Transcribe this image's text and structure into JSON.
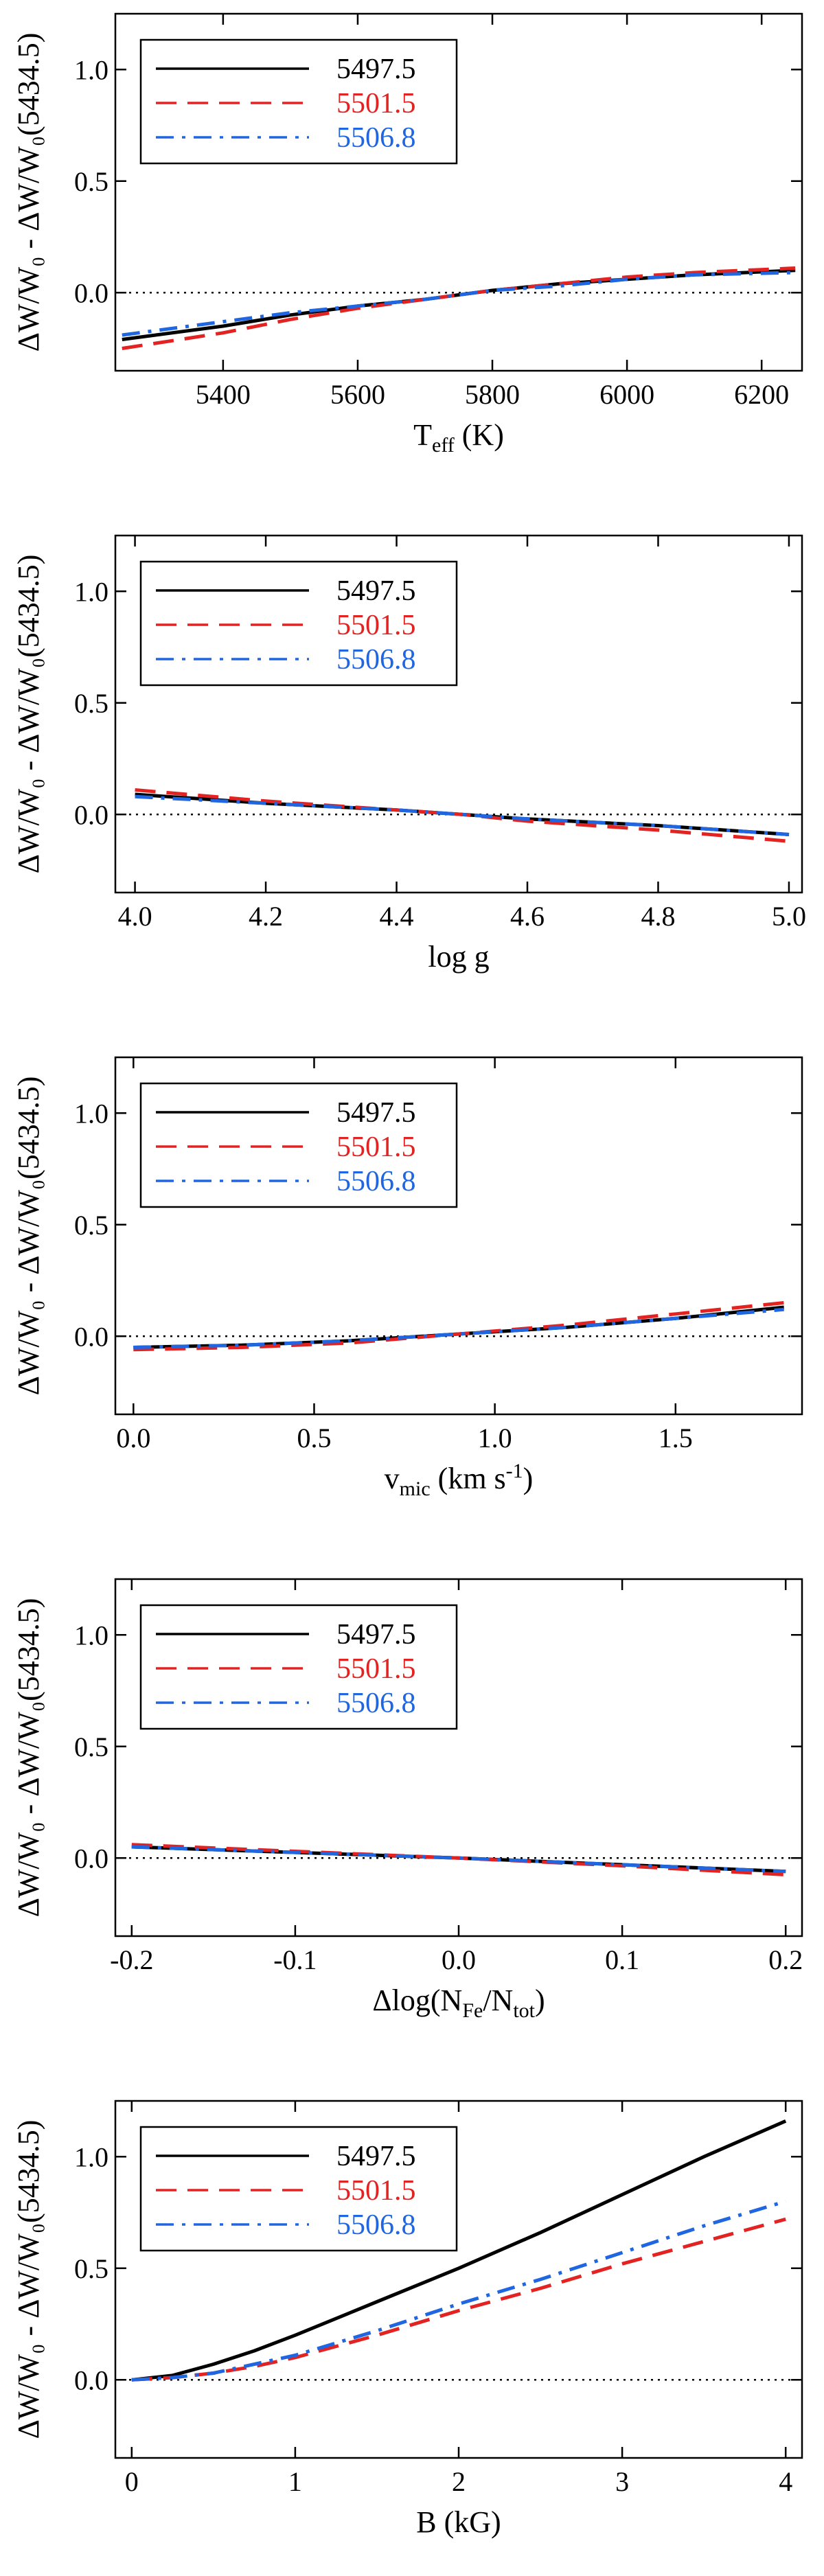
{
  "figure_title": "",
  "chart_data": [
    {
      "type": "line",
      "title": "",
      "xlabel": "T",
      "xlabel_sub": "eff",
      "xlabel_unit": " (K)",
      "ylabel": "ΔW/W₀ - ΔW/W₀(5434.5)",
      "xlim": [
        5240,
        6260
      ],
      "ylim": [
        -0.35,
        1.25
      ],
      "xticks": [
        5400,
        5600,
        5800,
        6000,
        6200
      ],
      "xtick_labels": [
        "5400",
        "5600",
        "5800",
        "6000",
        "6200"
      ],
      "yticks": [
        0.0,
        0.5,
        1.0
      ],
      "ytick_labels": [
        "0.0",
        "0.5",
        "1.0"
      ],
      "reference_line": 0,
      "legend_position": "top-left",
      "series": [
        {
          "name": "5497.5",
          "color": "#000000",
          "dash": "solid",
          "x": [
            5250,
            5400,
            5500,
            5600,
            5700,
            5800,
            5900,
            6000,
            6100,
            6250
          ],
          "y": [
            -0.21,
            -0.15,
            -0.1,
            -0.06,
            -0.03,
            0.01,
            0.04,
            0.06,
            0.08,
            0.1
          ]
        },
        {
          "name": "5501.5",
          "color": "#e32222",
          "dash": "dashed",
          "x": [
            5250,
            5400,
            5500,
            5600,
            5700,
            5800,
            5900,
            6000,
            6100,
            6250
          ],
          "y": [
            -0.25,
            -0.18,
            -0.12,
            -0.07,
            -0.03,
            0.01,
            0.04,
            0.07,
            0.09,
            0.11
          ]
        },
        {
          "name": "5506.8",
          "color": "#1f66e0",
          "dash": "dashdot",
          "x": [
            5250,
            5400,
            5500,
            5600,
            5700,
            5800,
            5900,
            6000,
            6100,
            6250
          ],
          "y": [
            -0.19,
            -0.13,
            -0.09,
            -0.06,
            -0.03,
            0.01,
            0.03,
            0.06,
            0.08,
            0.09
          ]
        }
      ]
    },
    {
      "type": "line",
      "title": "",
      "xlabel": "log g",
      "xlabel_sub": "",
      "xlabel_unit": "",
      "ylabel": "ΔW/W₀ - ΔW/W₀(5434.5)",
      "xlim": [
        3.97,
        5.02
      ],
      "ylim": [
        -0.35,
        1.25
      ],
      "xticks": [
        4.0,
        4.2,
        4.4,
        4.6,
        4.8,
        5.0
      ],
      "xtick_labels": [
        "4.0",
        "4.2",
        "4.4",
        "4.6",
        "4.8",
        "5.0"
      ],
      "yticks": [
        0.0,
        0.5,
        1.0
      ],
      "ytick_labels": [
        "0.0",
        "0.5",
        "1.0"
      ],
      "reference_line": 0,
      "legend_position": "top-left",
      "series": [
        {
          "name": "5497.5",
          "color": "#000000",
          "dash": "solid",
          "x": [
            4.0,
            4.2,
            4.4,
            4.5,
            4.6,
            4.8,
            5.0
          ],
          "y": [
            0.09,
            0.05,
            0.02,
            0.0,
            -0.02,
            -0.05,
            -0.09
          ]
        },
        {
          "name": "5501.5",
          "color": "#e32222",
          "dash": "dashed",
          "x": [
            4.0,
            4.2,
            4.4,
            4.5,
            4.6,
            4.8,
            5.0
          ],
          "y": [
            0.11,
            0.06,
            0.02,
            0.0,
            -0.03,
            -0.07,
            -0.12
          ]
        },
        {
          "name": "5506.8",
          "color": "#1f66e0",
          "dash": "dashdot",
          "x": [
            4.0,
            4.2,
            4.4,
            4.5,
            4.6,
            4.8,
            5.0
          ],
          "y": [
            0.08,
            0.05,
            0.02,
            0.0,
            -0.02,
            -0.05,
            -0.09
          ]
        }
      ]
    },
    {
      "type": "line",
      "title": "",
      "xlabel": "v",
      "xlabel_sub": "mic",
      "xlabel_unit": " (km s",
      "xlabel_sup": "-1",
      "xlabel_end": ")",
      "ylabel": "ΔW/W₀ - ΔW/W₀(5434.5)",
      "xlim": [
        -0.05,
        1.85
      ],
      "ylim": [
        -0.35,
        1.25
      ],
      "xticks": [
        0.0,
        0.5,
        1.0,
        1.5
      ],
      "xtick_labels": [
        "0.0",
        "0.5",
        "1.0",
        "1.5"
      ],
      "yticks": [
        0.0,
        0.5,
        1.0
      ],
      "ytick_labels": [
        "0.0",
        "0.5",
        "1.0"
      ],
      "reference_line": 0,
      "legend_position": "top-left",
      "series": [
        {
          "name": "5497.5",
          "color": "#000000",
          "dash": "solid",
          "x": [
            0.0,
            0.3,
            0.6,
            0.9,
            1.2,
            1.5,
            1.8
          ],
          "y": [
            -0.05,
            -0.04,
            -0.02,
            0.01,
            0.04,
            0.08,
            0.13
          ]
        },
        {
          "name": "5501.5",
          "color": "#e32222",
          "dash": "dashed",
          "x": [
            0.0,
            0.3,
            0.6,
            0.9,
            1.2,
            1.5,
            1.8
          ],
          "y": [
            -0.06,
            -0.05,
            -0.03,
            0.01,
            0.05,
            0.1,
            0.15
          ]
        },
        {
          "name": "5506.8",
          "color": "#1f66e0",
          "dash": "dashdot",
          "x": [
            0.0,
            0.3,
            0.6,
            0.9,
            1.2,
            1.5,
            1.8
          ],
          "y": [
            -0.05,
            -0.04,
            -0.02,
            0.01,
            0.04,
            0.08,
            0.12
          ]
        }
      ]
    },
    {
      "type": "line",
      "title": "",
      "xlabel": "Δlog(N",
      "xlabel_sub": "Fe",
      "xlabel_mid": "/N",
      "xlabel_sub2": "tot",
      "xlabel_end": ")",
      "ylabel": "ΔW/W₀ - ΔW/W₀(5434.5)",
      "xlim": [
        -0.21,
        0.21
      ],
      "ylim": [
        -0.35,
        1.25
      ],
      "xticks": [
        -0.2,
        -0.1,
        0.0,
        0.1,
        0.2
      ],
      "xtick_labels": [
        "-0.2",
        "-0.1",
        "0.0",
        "0.1",
        "0.2"
      ],
      "yticks": [
        0.0,
        0.5,
        1.0
      ],
      "ytick_labels": [
        "0.0",
        "0.5",
        "1.0"
      ],
      "reference_line": 0,
      "legend_position": "top-left",
      "series": [
        {
          "name": "5497.5",
          "color": "#000000",
          "dash": "solid",
          "x": [
            -0.2,
            -0.1,
            0.0,
            0.1,
            0.2
          ],
          "y": [
            0.05,
            0.025,
            0.0,
            -0.03,
            -0.06
          ]
        },
        {
          "name": "5501.5",
          "color": "#e32222",
          "dash": "dashed",
          "x": [
            -0.2,
            -0.1,
            0.0,
            0.1,
            0.2
          ],
          "y": [
            0.06,
            0.03,
            0.0,
            -0.035,
            -0.075
          ]
        },
        {
          "name": "5506.8",
          "color": "#1f66e0",
          "dash": "dashdot",
          "x": [
            -0.2,
            -0.1,
            0.0,
            0.1,
            0.2
          ],
          "y": [
            0.05,
            0.025,
            0.0,
            -0.03,
            -0.06
          ]
        }
      ]
    },
    {
      "type": "line",
      "title": "",
      "xlabel": "B (kG)",
      "xlabel_sub": "",
      "xlabel_unit": "",
      "ylabel": "ΔW/W₀ - ΔW/W₀(5434.5)",
      "xlim": [
        -0.1,
        4.1
      ],
      "ylim": [
        -0.35,
        1.25
      ],
      "xticks": [
        0,
        1,
        2,
        3,
        4
      ],
      "xtick_labels": [
        "0",
        "1",
        "2",
        "3",
        "4"
      ],
      "yticks": [
        0.0,
        0.5,
        1.0
      ],
      "ytick_labels": [
        "0.0",
        "0.5",
        "1.0"
      ],
      "reference_line": 0,
      "legend_position": "top-left",
      "series": [
        {
          "name": "5497.5",
          "color": "#000000",
          "dash": "solid",
          "x": [
            0,
            0.25,
            0.5,
            0.75,
            1.0,
            1.5,
            2.0,
            2.5,
            3.0,
            3.5,
            4.0
          ],
          "y": [
            0.0,
            0.02,
            0.07,
            0.13,
            0.2,
            0.35,
            0.5,
            0.66,
            0.83,
            1.0,
            1.16
          ]
        },
        {
          "name": "5501.5",
          "color": "#e32222",
          "dash": "dashed",
          "x": [
            0,
            0.25,
            0.5,
            0.75,
            1.0,
            1.5,
            2.0,
            2.5,
            3.0,
            3.5,
            4.0
          ],
          "y": [
            0.0,
            0.01,
            0.03,
            0.06,
            0.1,
            0.2,
            0.31,
            0.41,
            0.52,
            0.62,
            0.72
          ]
        },
        {
          "name": "5506.8",
          "color": "#1f66e0",
          "dash": "dashdot",
          "x": [
            0,
            0.25,
            0.5,
            0.75,
            1.0,
            1.5,
            2.0,
            2.5,
            3.0,
            3.5,
            4.0
          ],
          "y": [
            0.0,
            0.01,
            0.03,
            0.07,
            0.11,
            0.22,
            0.34,
            0.45,
            0.57,
            0.69,
            0.8
          ]
        }
      ]
    }
  ]
}
